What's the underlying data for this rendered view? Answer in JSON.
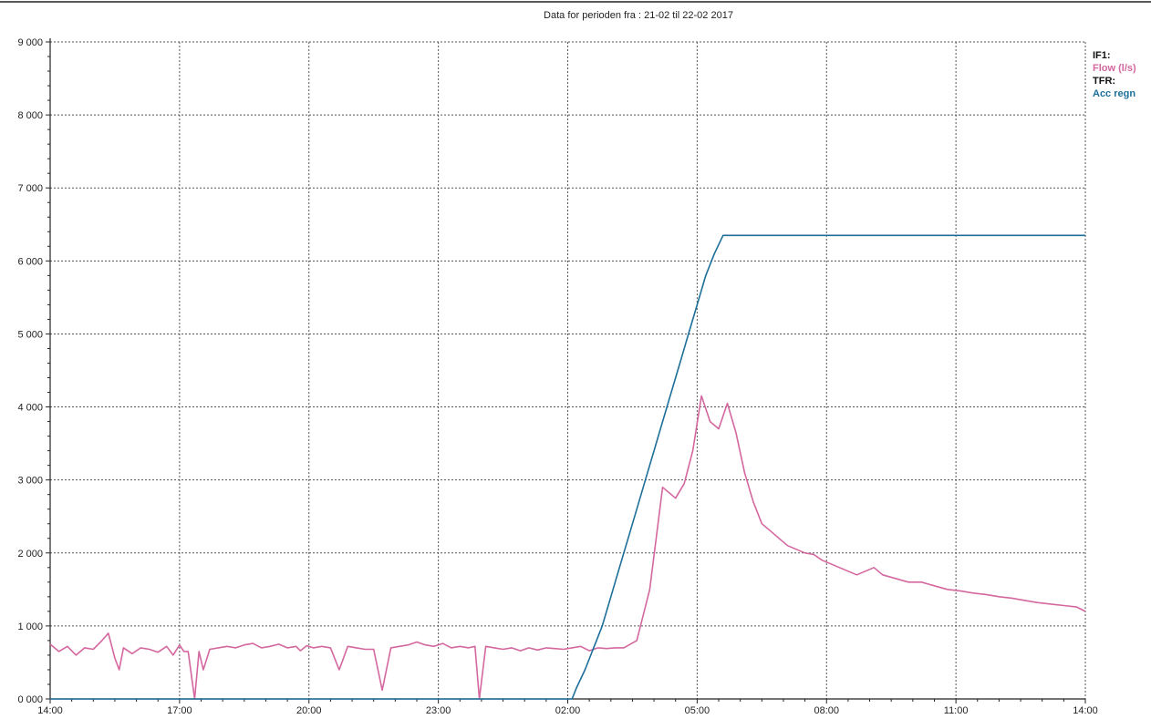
{
  "chart_data": {
    "type": "line",
    "title": "Data for perioden fra :  21-02  til  22-02 2017",
    "y_ticks": [
      "0 000",
      "1 000",
      "2 000",
      "3 000",
      "4 000",
      "5 000",
      "6 000",
      "7 000",
      "8 000",
      "9 000"
    ],
    "x_ticks": [
      "14:00",
      "17:00",
      "20:00",
      "23:00",
      "02:00",
      "05:00",
      "08:00",
      "11:00",
      "14:00"
    ],
    "xlim_hours": [
      0,
      24
    ],
    "ylim": [
      0,
      9000
    ],
    "grid": true,
    "legend_position": "top-right",
    "legend": [
      {
        "label": "IF1:",
        "color": "#111111"
      },
      {
        "label": "Flow (l/s)",
        "color": "#d4679f"
      },
      {
        "label": "TFR:",
        "color": "#111111"
      },
      {
        "label": "Acc regn",
        "color": "#1d6f9a"
      }
    ],
    "series": [
      {
        "name": "Flow (l/s)",
        "color": "#d4679f",
        "x": [
          0.0,
          0.2,
          0.4,
          0.6,
          0.8,
          1.0,
          1.2,
          1.35,
          1.5,
          1.6,
          1.7,
          1.9,
          2.1,
          2.3,
          2.5,
          2.7,
          2.85,
          3.0,
          3.1,
          3.2,
          3.35,
          3.45,
          3.55,
          3.7,
          3.9,
          4.1,
          4.3,
          4.5,
          4.7,
          4.9,
          5.1,
          5.3,
          5.5,
          5.7,
          5.8,
          5.95,
          6.1,
          6.3,
          6.5,
          6.7,
          6.9,
          7.1,
          7.3,
          7.5,
          7.7,
          7.9,
          8.1,
          8.3,
          8.5,
          8.7,
          8.9,
          9.1,
          9.3,
          9.5,
          9.7,
          9.85,
          9.95,
          10.1,
          10.3,
          10.5,
          10.7,
          10.9,
          11.1,
          11.3,
          11.5,
          11.7,
          11.9,
          12.1,
          12.3,
          12.5,
          12.7,
          12.9,
          13.1,
          13.3,
          13.6,
          13.9,
          14.2,
          14.5,
          14.7,
          14.9,
          15.1,
          15.3,
          15.5,
          15.7,
          15.9,
          16.1,
          16.3,
          16.5,
          16.7,
          16.9,
          17.1,
          17.3,
          17.5,
          17.7,
          17.9,
          18.1,
          18.3,
          18.5,
          18.7,
          18.9,
          19.1,
          19.3,
          19.6,
          19.9,
          20.2,
          20.5,
          20.8,
          21.1,
          21.4,
          21.7,
          22.0,
          22.3,
          22.6,
          22.9,
          23.2,
          23.5,
          23.8,
          24.0
        ],
        "y": [
          750,
          650,
          720,
          600,
          700,
          680,
          800,
          900,
          560,
          400,
          700,
          620,
          700,
          680,
          640,
          720,
          600,
          740,
          650,
          650,
          0,
          650,
          400,
          680,
          700,
          720,
          700,
          740,
          760,
          700,
          720,
          750,
          700,
          720,
          660,
          730,
          700,
          720,
          700,
          400,
          720,
          700,
          680,
          680,
          120,
          700,
          720,
          740,
          780,
          740,
          720,
          760,
          700,
          720,
          700,
          720,
          0,
          720,
          700,
          680,
          700,
          660,
          700,
          670,
          700,
          690,
          680,
          700,
          720,
          660,
          700,
          690,
          700,
          700,
          800,
          1500,
          2900,
          2750,
          2950,
          3400,
          4150,
          3800,
          3700,
          4050,
          3650,
          3100,
          2700,
          2400,
          2300,
          2200,
          2100,
          2050,
          2000,
          1980,
          1900,
          1850,
          1800,
          1750,
          1700,
          1750,
          1800,
          1700,
          1650,
          1600,
          1600,
          1550,
          1500,
          1480,
          1450,
          1430,
          1400,
          1380,
          1350,
          1320,
          1300,
          1280,
          1260,
          1200
        ]
      },
      {
        "name": "Acc regn",
        "color": "#1d6f9a",
        "x": [
          0,
          12.1,
          12.1,
          12.2,
          12.4,
          12.6,
          12.8,
          13.0,
          13.2,
          13.4,
          13.6,
          13.8,
          14.0,
          14.2,
          14.4,
          14.6,
          14.8,
          15.0,
          15.2,
          15.4,
          15.6,
          15.8,
          16.0,
          16.2,
          16.4,
          16.6,
          16.8,
          17.0,
          17.2,
          17.4,
          17.6,
          17.8,
          18.0,
          18.2,
          18.4,
          18.6,
          18.8,
          19.0,
          19.2,
          19.4,
          19.6,
          19.8,
          20.0,
          20.2,
          20.4,
          20.6,
          20.8,
          21.0,
          21.2,
          21.4,
          21.6,
          21.8,
          22.0,
          22.2,
          22.4,
          22.6,
          22.8,
          23.0,
          23.2,
          23.4,
          23.6,
          23.8,
          24.0
        ],
        "y": [
          0,
          0,
          0,
          150,
          400,
          700,
          1000,
          1400,
          1800,
          2200,
          2600,
          3000,
          3400,
          3800,
          4200,
          4600,
          5000,
          5400,
          5800,
          6100,
          6350,
          6350,
          6350,
          6350,
          6350,
          6350,
          6350,
          6350,
          6350,
          6350,
          6350,
          6350,
          6350,
          6350,
          6350,
          6350,
          6350,
          6350,
          6350,
          6350,
          6350,
          6350,
          6350,
          6350,
          6350,
          6350,
          6350,
          6350,
          6350,
          6350,
          6350,
          6350,
          6350,
          6350,
          6350,
          6350,
          6350,
          6350,
          6350,
          6350,
          6350,
          6350,
          6350
        ]
      }
    ]
  }
}
